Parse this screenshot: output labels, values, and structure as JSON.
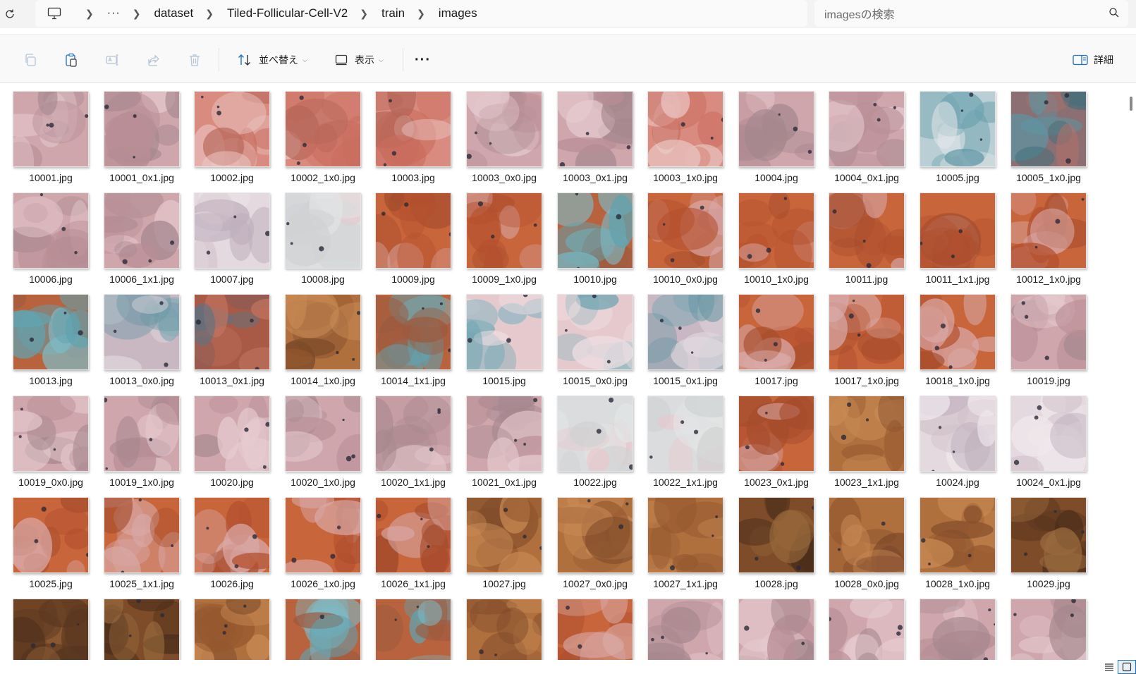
{
  "breadcrumb": {
    "pc_icon": "computer-icon",
    "overflow": "···",
    "parts": [
      "dataset",
      "Tiled-Follicular-Cell-V2",
      "train",
      "images"
    ]
  },
  "search": {
    "placeholder": "imagesの検索"
  },
  "toolbar": {
    "sort_label": "並べ替え",
    "view_label": "表示",
    "more_label": "···",
    "details_label": "詳細"
  },
  "files": [
    {
      "name": "10001.jpg",
      "palette": "pink"
    },
    {
      "name": "10001_0x1.jpg",
      "palette": "pink"
    },
    {
      "name": "10002.jpg",
      "palette": "pink-red"
    },
    {
      "name": "10002_1x0.jpg",
      "palette": "pink-red"
    },
    {
      "name": "10003.jpg",
      "palette": "pink-red"
    },
    {
      "name": "10003_0x0.jpg",
      "palette": "pink"
    },
    {
      "name": "10003_0x1.jpg",
      "palette": "pink"
    },
    {
      "name": "10003_1x0.jpg",
      "palette": "pink-red"
    },
    {
      "name": "10004.jpg",
      "palette": "pink"
    },
    {
      "name": "10004_0x1.jpg",
      "palette": "pink"
    },
    {
      "name": "10005.jpg",
      "palette": "blue"
    },
    {
      "name": "10005_1x0.jpg",
      "palette": "blue-red"
    },
    {
      "name": "10006.jpg",
      "palette": "pink"
    },
    {
      "name": "10006_1x1.jpg",
      "palette": "pink"
    },
    {
      "name": "10007.jpg",
      "palette": "pale"
    },
    {
      "name": "10008.jpg",
      "palette": "blank"
    },
    {
      "name": "10009.jpg",
      "palette": "orange"
    },
    {
      "name": "10009_1x0.jpg",
      "palette": "orange"
    },
    {
      "name": "10010.jpg",
      "palette": "orange-blue"
    },
    {
      "name": "10010_0x0.jpg",
      "palette": "orange"
    },
    {
      "name": "10010_1x0.jpg",
      "palette": "orange"
    },
    {
      "name": "10011.jpg",
      "palette": "orange"
    },
    {
      "name": "10011_1x1.jpg",
      "palette": "orange"
    },
    {
      "name": "10012_1x0.jpg",
      "palette": "orange"
    },
    {
      "name": "10013.jpg",
      "palette": "orange-blue"
    },
    {
      "name": "10013_0x0.jpg",
      "palette": "blue-pale"
    },
    {
      "name": "10013_0x1.jpg",
      "palette": "red-blue"
    },
    {
      "name": "10014_1x0.jpg",
      "palette": "brown"
    },
    {
      "name": "10014_1x1.jpg",
      "palette": "orange-blue"
    },
    {
      "name": "10015.jpg",
      "palette": "pink-blue"
    },
    {
      "name": "10015_0x0.jpg",
      "palette": "pink-blue"
    },
    {
      "name": "10015_0x1.jpg",
      "palette": "blue-pale"
    },
    {
      "name": "10017.jpg",
      "palette": "orange"
    },
    {
      "name": "10017_1x0.jpg",
      "palette": "orange"
    },
    {
      "name": "10018_1x0.jpg",
      "palette": "orange"
    },
    {
      "name": "10019.jpg",
      "palette": "pink"
    },
    {
      "name": "10019_0x0.jpg",
      "palette": "pink"
    },
    {
      "name": "10019_1x0.jpg",
      "palette": "pink"
    },
    {
      "name": "10020.jpg",
      "palette": "pink"
    },
    {
      "name": "10020_1x0.jpg",
      "palette": "pink"
    },
    {
      "name": "10020_1x1.jpg",
      "palette": "pink"
    },
    {
      "name": "10021_0x1.jpg",
      "palette": "pink"
    },
    {
      "name": "10022.jpg",
      "palette": "blank"
    },
    {
      "name": "10022_1x1.jpg",
      "palette": "blank"
    },
    {
      "name": "10023_0x1.jpg",
      "palette": "orange"
    },
    {
      "name": "10023_1x1.jpg",
      "palette": "brown"
    },
    {
      "name": "10024.jpg",
      "palette": "pale"
    },
    {
      "name": "10024_0x1.jpg",
      "palette": "pale"
    },
    {
      "name": "10025.jpg",
      "palette": "orange"
    },
    {
      "name": "10025_1x1.jpg",
      "palette": "orange"
    },
    {
      "name": "10026.jpg",
      "palette": "orange"
    },
    {
      "name": "10026_1x0.jpg",
      "palette": "orange"
    },
    {
      "name": "10026_1x1.jpg",
      "palette": "orange"
    },
    {
      "name": "10027.jpg",
      "palette": "brown"
    },
    {
      "name": "10027_0x0.jpg",
      "palette": "brown"
    },
    {
      "name": "10027_1x1.jpg",
      "palette": "brown"
    },
    {
      "name": "10028.jpg",
      "palette": "dark-brown"
    },
    {
      "name": "10028_0x0.jpg",
      "palette": "brown"
    },
    {
      "name": "10028_1x0.jpg",
      "palette": "brown"
    },
    {
      "name": "10029.jpg",
      "palette": "dark-brown"
    },
    {
      "name": "",
      "palette": "dark-brown"
    },
    {
      "name": "",
      "palette": "dark-brown"
    },
    {
      "name": "",
      "palette": "brown"
    },
    {
      "name": "",
      "palette": "orange-blue"
    },
    {
      "name": "",
      "palette": "orange-blue"
    },
    {
      "name": "",
      "palette": "brown"
    },
    {
      "name": "",
      "palette": "orange"
    },
    {
      "name": "",
      "palette": "pink"
    },
    {
      "name": "",
      "palette": "pink"
    },
    {
      "name": "",
      "palette": "pink"
    },
    {
      "name": "",
      "palette": "pink"
    },
    {
      "name": "",
      "palette": "pink"
    }
  ],
  "palettes": {
    "pink": [
      "#cfa6ac",
      "#b98e96",
      "#e6cbd0",
      "#a5878e"
    ],
    "pink-red": [
      "#d98b7f",
      "#c96c5e",
      "#ebc8c6",
      "#b56558"
    ],
    "pale": [
      "#e4d9de",
      "#d3c2cb",
      "#f0e8ec",
      "#bfb0bd"
    ],
    "blank": [
      "#dadcdd",
      "#e3e5e6",
      "#d0d2d3",
      "#e9c9cf"
    ],
    "blue": [
      "#b9cfd5",
      "#6ea3b0",
      "#e5e8ea",
      "#5b93a2"
    ],
    "blue-red": [
      "#8b6f73",
      "#5a97a5",
      "#b5706a",
      "#3f6f7c"
    ],
    "orange": [
      "#c8653b",
      "#b4502e",
      "#d9a9a8",
      "#a44c2c"
    ],
    "orange-blue": [
      "#b9633e",
      "#5fa3b1",
      "#9c5a3f",
      "#7fb9c3"
    ],
    "blue-pale": [
      "#c9b8c2",
      "#7fa9b6",
      "#e2d8de",
      "#6a97a4"
    ],
    "red-blue": [
      "#a85a47",
      "#8a5b57",
      "#c27561",
      "#5f7282"
    ],
    "brown": [
      "#b0703e",
      "#95582f",
      "#c98b55",
      "#7e4a2a"
    ],
    "pink-blue": [
      "#e5c9cd",
      "#8fb7c1",
      "#f1e1e4",
      "#6ea4b2"
    ],
    "dark-brown": [
      "#7e4c28",
      "#5c3820",
      "#9a6a3e",
      "#4a2d1a"
    ]
  },
  "status": {
    "details_view_icon": "details-view-icon",
    "large_icons_view_icon": "large-icons-view-icon"
  }
}
